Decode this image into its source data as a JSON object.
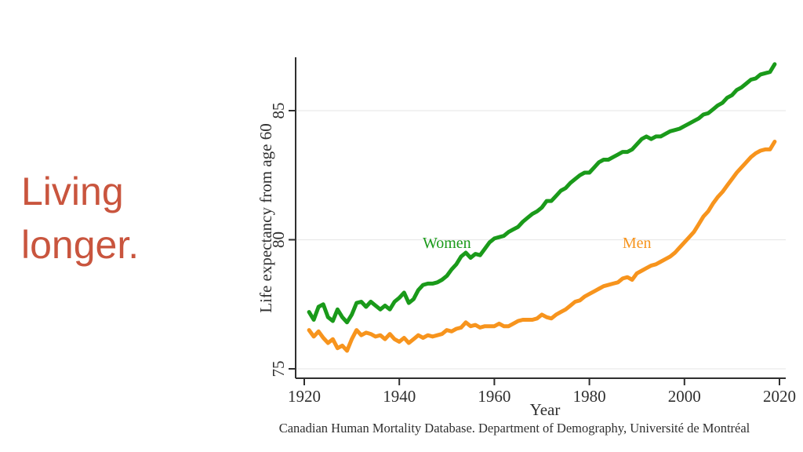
{
  "slide": {
    "title": "Living longer.",
    "title_color": "#c9553e",
    "background_color": "#ffffff"
  },
  "chart_data": {
    "type": "line",
    "title": "",
    "xlabel": "Year",
    "ylabel": "Life expectancy from age 60",
    "caption": "Canadian Human Mortality Database. Department of Demography, Université de Montréal",
    "xlim": [
      1918,
      2021
    ],
    "ylim": [
      74.6,
      87.1
    ],
    "xticks": [
      1920,
      1940,
      1960,
      1980,
      2000,
      2020
    ],
    "yticks": [
      75,
      80,
      85
    ],
    "grid": "horizontal-only",
    "legend": "inline-series-labels",
    "axis_color": "#2f2f2f",
    "gridline_color": "#e9e9e9",
    "tick_label_color": "#2f2f2f",
    "x_start_year": 1921,
    "x_step": 1,
    "series": [
      {
        "name": "Women",
        "color": "#1a9a1a",
        "label_pos": {
          "year": 1950,
          "value": 79.9
        },
        "values": [
          77.2,
          76.9,
          77.4,
          77.5,
          77.0,
          76.85,
          77.3,
          77.0,
          76.8,
          77.1,
          77.55,
          77.6,
          77.4,
          77.6,
          77.45,
          77.3,
          77.45,
          77.3,
          77.6,
          77.75,
          77.95,
          77.55,
          77.7,
          78.05,
          78.25,
          78.3,
          78.3,
          78.35,
          78.45,
          78.6,
          78.85,
          79.05,
          79.35,
          79.5,
          79.3,
          79.45,
          79.4,
          79.65,
          79.9,
          80.05,
          80.1,
          80.15,
          80.3,
          80.4,
          80.5,
          80.7,
          80.85,
          81.0,
          81.1,
          81.25,
          81.5,
          81.5,
          81.7,
          81.9,
          82.0,
          82.2,
          82.35,
          82.5,
          82.6,
          82.6,
          82.8,
          83.0,
          83.1,
          83.1,
          83.2,
          83.3,
          83.4,
          83.4,
          83.5,
          83.7,
          83.9,
          84.0,
          83.9,
          84.0,
          84.0,
          84.1,
          84.2,
          84.25,
          84.3,
          84.4,
          84.5,
          84.6,
          84.7,
          84.85,
          84.9,
          85.05,
          85.2,
          85.3,
          85.5,
          85.6,
          85.8,
          85.9,
          86.05,
          86.2,
          86.25,
          86.4,
          86.45,
          86.5,
          86.8
        ]
      },
      {
        "name": "Men",
        "color": "#f7941d",
        "label_pos": {
          "year": 1990,
          "value": 79.9
        },
        "values": [
          76.5,
          76.25,
          76.45,
          76.2,
          76.0,
          76.15,
          75.8,
          75.9,
          75.7,
          76.15,
          76.5,
          76.3,
          76.4,
          76.35,
          76.25,
          76.3,
          76.15,
          76.35,
          76.15,
          76.05,
          76.2,
          76.0,
          76.15,
          76.3,
          76.2,
          76.3,
          76.25,
          76.3,
          76.35,
          76.5,
          76.45,
          76.55,
          76.6,
          76.8,
          76.65,
          76.7,
          76.6,
          76.65,
          76.65,
          76.65,
          76.75,
          76.65,
          76.65,
          76.75,
          76.85,
          76.9,
          76.9,
          76.9,
          76.95,
          77.1,
          77.0,
          76.95,
          77.1,
          77.2,
          77.3,
          77.45,
          77.6,
          77.65,
          77.8,
          77.9,
          78.0,
          78.1,
          78.2,
          78.25,
          78.3,
          78.35,
          78.5,
          78.55,
          78.45,
          78.7,
          78.8,
          78.9,
          79.0,
          79.05,
          79.15,
          79.25,
          79.35,
          79.5,
          79.7,
          79.9,
          80.1,
          80.3,
          80.6,
          80.9,
          81.1,
          81.4,
          81.65,
          81.85,
          82.1,
          82.35,
          82.6,
          82.8,
          83.0,
          83.2,
          83.35,
          83.45,
          83.5,
          83.5,
          83.8
        ]
      }
    ]
  }
}
